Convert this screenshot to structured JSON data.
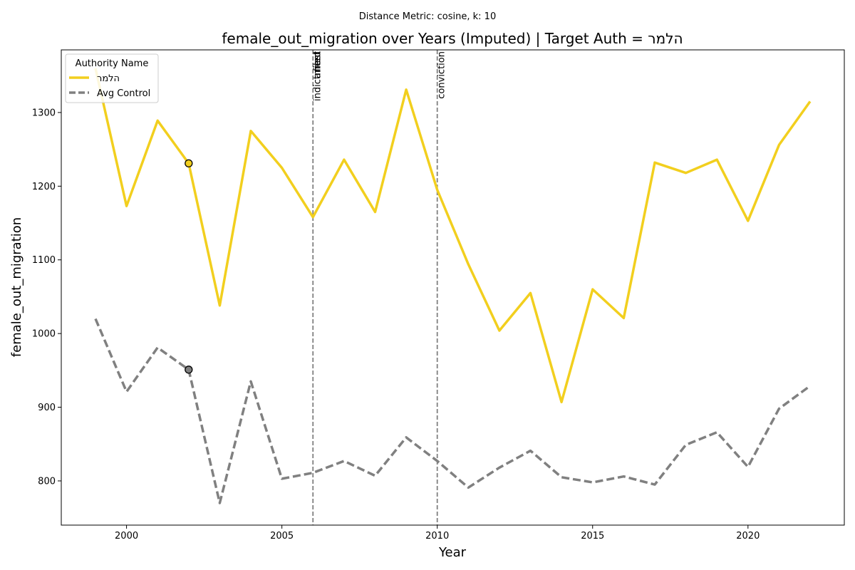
{
  "chart_data": {
    "type": "line",
    "suptitle": "Distance Metric: cosine, k: 10",
    "title": "female_out_migration over Years (Imputed) | Target Auth = הלמר",
    "xlabel": "Year",
    "ylabel": "female_out_migration",
    "xlim": [
      1997.9,
      2023.1
    ],
    "ylim": [
      740,
      1385
    ],
    "xticks": [
      2000,
      2005,
      2010,
      2015,
      2020
    ],
    "yticks": [
      800,
      900,
      1000,
      1100,
      1200,
      1300
    ],
    "legend": {
      "title": "Authority Name",
      "position": "top-left"
    },
    "x": [
      1999,
      2000,
      2001,
      2002,
      2003,
      2004,
      2005,
      2006,
      2007,
      2008,
      2009,
      2010,
      2011,
      2012,
      2013,
      2014,
      2015,
      2016,
      2017,
      2018,
      2019,
      2020,
      2021,
      2022
    ],
    "series": [
      {
        "name": "הלמר",
        "color": "#f2cf1e",
        "style": "solid",
        "values": [
          1360,
          1173,
          1289,
          1231,
          1038,
          1275,
          1225,
          1158,
          1236,
          1165,
          1331,
          1195,
          1094,
          1004,
          1055,
          907,
          1060,
          1021,
          1232,
          1218,
          1236,
          1153,
          1256,
          1315
        ],
        "markers": [
          {
            "x": 2002,
            "y": 1231
          }
        ]
      },
      {
        "name": "Avg Control",
        "color": "#808080",
        "style": "dashed",
        "values": [
          1020,
          921,
          981,
          951,
          770,
          935,
          803,
          811,
          827,
          807,
          859,
          827,
          791,
          818,
          841,
          805,
          798,
          806,
          795,
          849,
          866,
          819,
          898,
          929
        ],
        "markers": [
          {
            "x": 2002,
            "y": 951
          }
        ]
      }
    ],
    "events": [
      {
        "x": 2006,
        "label": "indictment"
      },
      {
        "x": 2006,
        "label": "arrest"
      },
      {
        "x": 2006,
        "label": "filed"
      },
      {
        "x": 2010,
        "label": "conviction"
      }
    ]
  }
}
